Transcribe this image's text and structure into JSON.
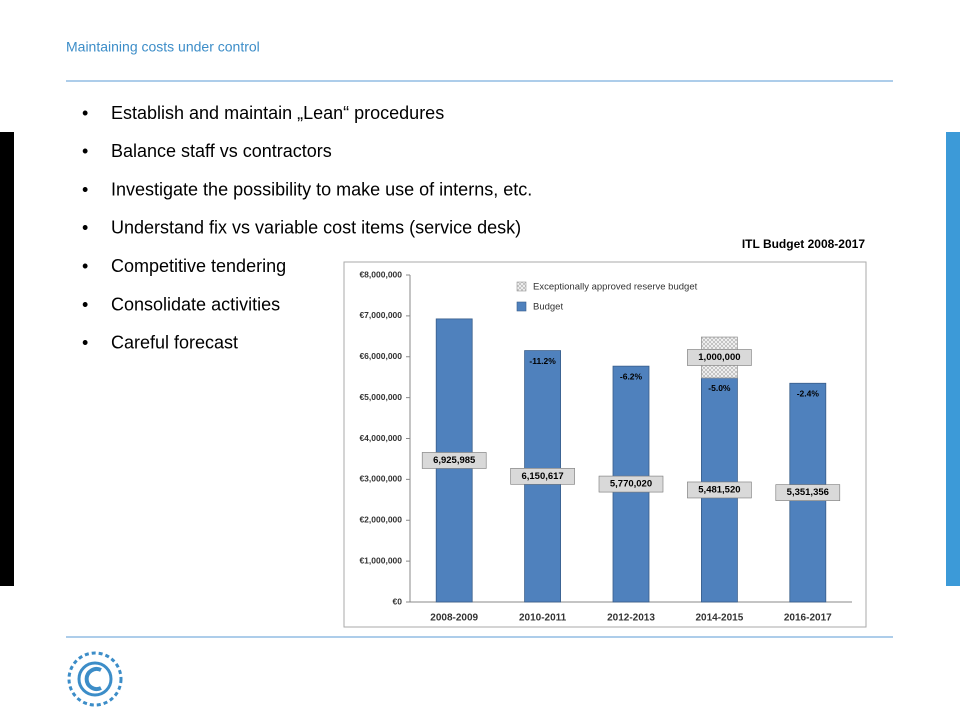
{
  "header": {
    "title": "Maintaining costs under control"
  },
  "bullets": [
    "Establish and maintain „Lean“ procedures",
    "Balance staff vs contractors",
    "Investigate the possibility to make use of interns, etc.",
    "Understand fix vs variable cost items (service desk)",
    "Competitive tendering",
    "Consolidate activities",
    "Careful forecast"
  ],
  "chart_data": {
    "type": "stacked_bar",
    "title": "ITL Budget 2008-2017",
    "categories": [
      "2008-2009",
      "2010-2011",
      "2012-2013",
      "2014-2015",
      "2016-2017"
    ],
    "series": [
      {
        "name": "Budget",
        "color": "#4f81bd",
        "values": [
          6925985,
          6150617,
          5770020,
          5481520,
          5351356
        ],
        "value_labels": [
          "6,925,985",
          "6,150,617",
          "5,770,020",
          "5,481,520",
          "5,351,356"
        ]
      },
      {
        "name": "Exceptionally approved reserve budget",
        "color": "#e3e3e3",
        "values": [
          null,
          null,
          null,
          1000000,
          null
        ],
        "value_labels": [
          null,
          null,
          null,
          "1,000,000",
          null
        ]
      }
    ],
    "annotations": [
      null,
      "-11.2%",
      "-6.2%",
      "-5.0%",
      "-2.4%"
    ],
    "ylim": [
      0,
      8000000
    ],
    "yticks": [
      {
        "value": 0,
        "label": "€0"
      },
      {
        "value": 1000000,
        "label": "€1,000,000"
      },
      {
        "value": 2000000,
        "label": "€2,000,000"
      },
      {
        "value": 3000000,
        "label": "€3,000,000"
      },
      {
        "value": 4000000,
        "label": "€4,000,000"
      },
      {
        "value": 5000000,
        "label": "€5,000,000"
      },
      {
        "value": 6000000,
        "label": "€6,000,000"
      },
      {
        "value": 7000000,
        "label": "€7,000,000"
      },
      {
        "value": 8000000,
        "label": "€8,000,000"
      }
    ],
    "grid": false,
    "legend": "top"
  }
}
